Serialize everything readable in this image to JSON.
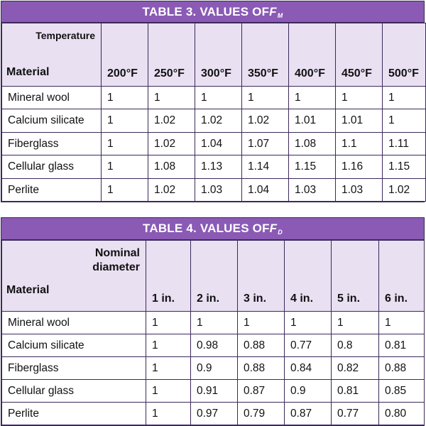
{
  "table3": {
    "title_prefix": "TABLE 3. VALUES OF ",
    "title_var": "F",
    "title_sub": "M",
    "corner_top": "Temperature",
    "corner_bottom": "Material",
    "columns": [
      "200°F",
      "250°F",
      "300°F",
      "350°F",
      "400°F",
      "450°F",
      "500°F"
    ],
    "rows": [
      {
        "material": "Mineral wool",
        "values": [
          "1",
          "1",
          "1",
          "1",
          "1",
          "1",
          "1"
        ]
      },
      {
        "material": "Calcium silicate",
        "values": [
          "1",
          "1.02",
          "1.02",
          "1.02",
          "1.01",
          "1.01",
          "1"
        ]
      },
      {
        "material": "Fiberglass",
        "values": [
          "1",
          "1.02",
          "1.04",
          "1.07",
          "1.08",
          "1.1",
          "1.11"
        ]
      },
      {
        "material": "Cellular glass",
        "values": [
          "1",
          "1.08",
          "1.13",
          "1.14",
          "1.15",
          "1.16",
          "1.15"
        ]
      },
      {
        "material": "Perlite",
        "values": [
          "1",
          "1.02",
          "1.03",
          "1.04",
          "1.03",
          "1.03",
          "1.02"
        ]
      }
    ]
  },
  "table4": {
    "title_prefix": "TABLE 4. VALUES OF ",
    "title_var": "F",
    "title_sub": "D",
    "corner_top_line1": "Nominal",
    "corner_top_line2": "diameter",
    "corner_bottom": "Material",
    "columns": [
      "1 in.",
      "2 in.",
      "3 in.",
      "4 in.",
      "5 in.",
      "6 in."
    ],
    "rows": [
      {
        "material": "Mineral wool",
        "values": [
          "1",
          "1",
          "1",
          "1",
          "1",
          "1"
        ]
      },
      {
        "material": "Calcium silicate",
        "values": [
          "1",
          "0.98",
          "0.88",
          "0.77",
          "0.8",
          "0.81"
        ]
      },
      {
        "material": "Fiberglass",
        "values": [
          "1",
          "0.9",
          "0.88",
          "0.84",
          "0.82",
          "0.88"
        ]
      },
      {
        "material": "Cellular glass",
        "values": [
          "1",
          "0.91",
          "0.87",
          "0.9",
          "0.81",
          "0.85"
        ]
      },
      {
        "material": "Perlite",
        "values": [
          "1",
          "0.97",
          "0.79",
          "0.87",
          "0.77",
          "0.80"
        ]
      }
    ]
  }
}
